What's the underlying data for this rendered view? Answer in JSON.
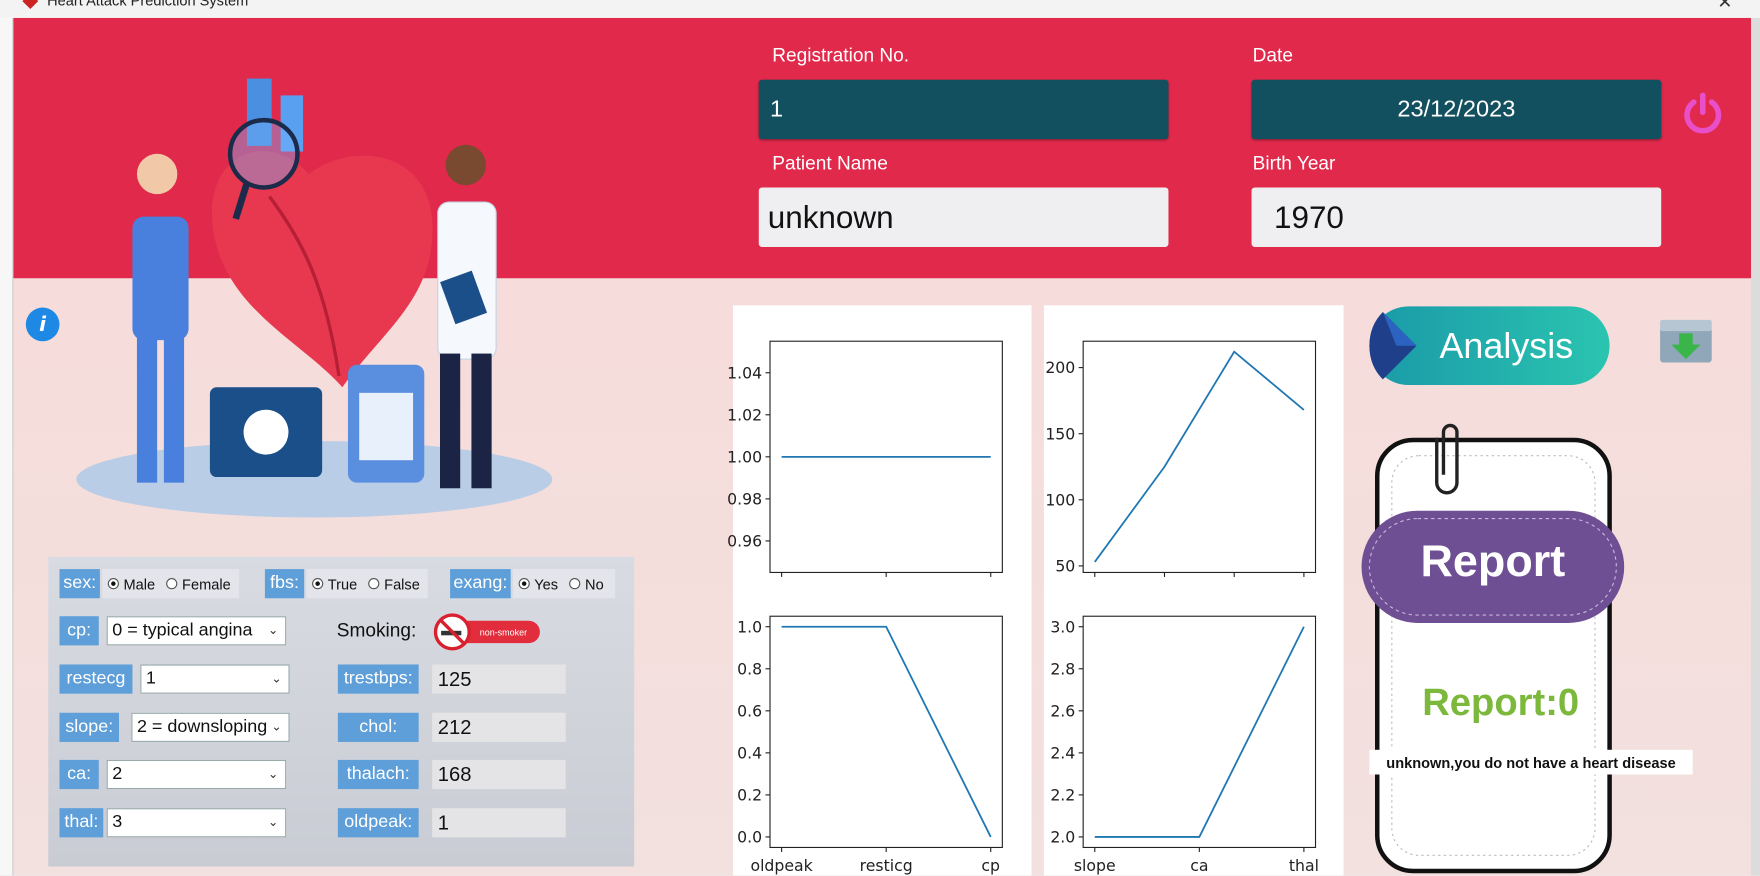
{
  "window_title": "Heart Attack Prediction System",
  "header": {
    "registration_label": "Registration No.",
    "registration_value": "1",
    "date_label": "Date",
    "date_value": "23/12/2023",
    "name_label": "Patient Name",
    "name_value": "unknown",
    "birth_label": "Birth Year",
    "birth_value": "1970"
  },
  "form": {
    "sex": {
      "label": "sex:",
      "options": [
        "Male",
        "Female"
      ],
      "selected": 0
    },
    "fbs": {
      "label": "fbs:",
      "options": [
        "True",
        "False"
      ],
      "selected": 0
    },
    "exang": {
      "label": "exang:",
      "options": [
        "Yes",
        "No"
      ],
      "selected": 0
    },
    "cp": {
      "label": "cp:",
      "value": "0 = typical angina"
    },
    "smoking": {
      "label": "Smoking:",
      "value": "non-smoker"
    },
    "restecg": {
      "label": "restecg",
      "value": "1"
    },
    "trestbps": {
      "label": "trestbps:",
      "value": "125"
    },
    "slope": {
      "label": "slope:",
      "value": "2 = downsloping"
    },
    "chol": {
      "label": "chol:",
      "value": "212"
    },
    "ca": {
      "label": "ca:",
      "value": "2"
    },
    "thalach": {
      "label": "thalach:",
      "value": "168"
    },
    "thal": {
      "label": "thal:",
      "value": "3"
    },
    "oldpeak": {
      "label": "oldpeak:",
      "value": "1"
    }
  },
  "charts": [
    {
      "type": "line",
      "categories": [
        null,
        null,
        null
      ],
      "values": [
        1,
        1,
        1
      ],
      "color": "#1f77b4",
      "ylim": [
        0.945,
        1.055
      ],
      "yticks": [
        0.96,
        0.98,
        {
          "value": 1,
          "label": "1.00"
        },
        1.02,
        1.04
      ]
    },
    {
      "type": "line",
      "categories": [
        null,
        null,
        null,
        null
      ],
      "values": [
        53,
        125,
        212,
        168
      ],
      "color": "#1f77b4",
      "ylim": [
        45.05,
        219.95
      ],
      "yticks": [
        50,
        100,
        150,
        200
      ]
    },
    {
      "type": "line",
      "categories": [
        "oldpeak",
        "resticg",
        "cp"
      ],
      "values": [
        1,
        1,
        0
      ],
      "color": "#1f77b4",
      "ylim": [
        -0.05,
        1.05
      ],
      "yticks": [
        {
          "value": 0,
          "label": "0.0"
        },
        0.2,
        0.4,
        0.6,
        0.8,
        {
          "value": 1,
          "label": "1.0"
        }
      ]
    },
    {
      "type": "line",
      "categories": [
        "slope",
        "ca",
        "thal"
      ],
      "values": [
        2,
        2,
        3
      ],
      "color": "#1f77b4",
      "ylim": [
        1.95,
        3.05
      ],
      "yticks": [
        {
          "value": 2,
          "label": "2.0"
        },
        2.2,
        2.4,
        2.6,
        2.8,
        {
          "value": 3,
          "label": "3.0"
        }
      ]
    }
  ],
  "analysis_button": "Analysis",
  "report": {
    "heading": "Report",
    "result": "Report:0",
    "message": "unknown,you do not have a heart disease"
  }
}
